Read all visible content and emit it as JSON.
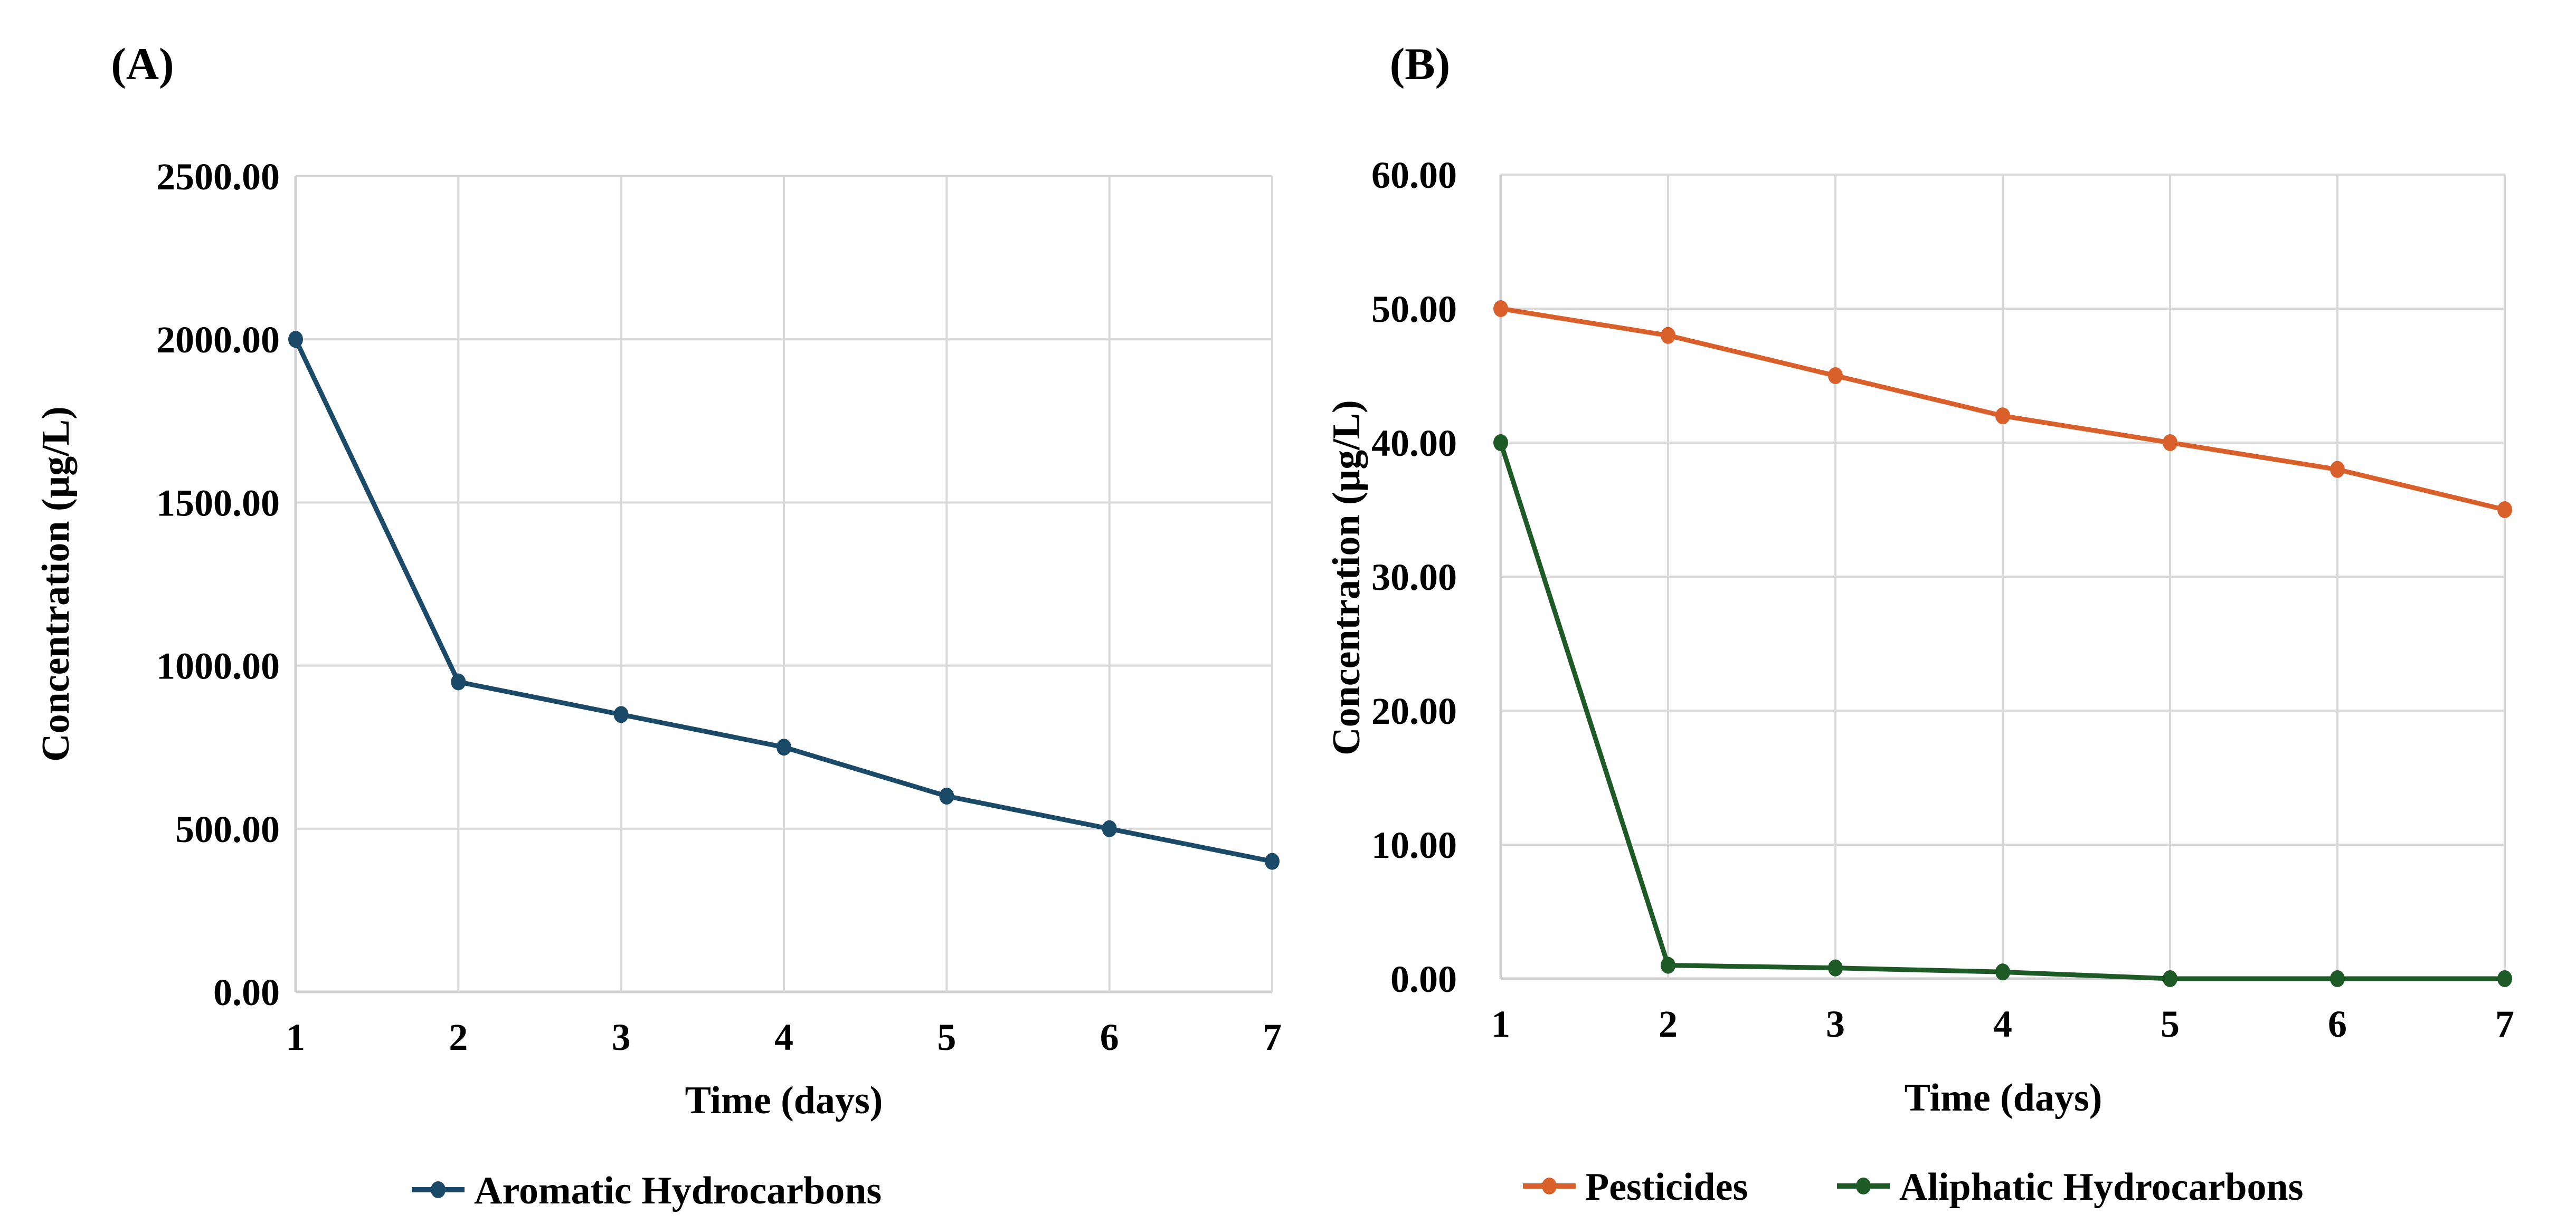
{
  "chart_data": [
    {
      "panel_label": "(A)",
      "type": "line",
      "title": "",
      "xlabel": "Time (days)",
      "ylabel": "Concentration (µg/L)",
      "x": [
        1,
        2,
        3,
        4,
        5,
        6,
        7
      ],
      "xticks": [
        "1",
        "2",
        "3",
        "4",
        "5",
        "6",
        "7"
      ],
      "ylim": [
        0,
        2500
      ],
      "yticks": [
        "0.00",
        "500.00",
        "1000.00",
        "1500.00",
        "2000.00",
        "2500.00"
      ],
      "ytick_values": [
        0,
        500,
        1000,
        1500,
        2000,
        2500
      ],
      "grid": true,
      "legend_position": "bottom-center",
      "series": [
        {
          "name": "Aromatic Hydrocarbons",
          "color": "#1b4a68",
          "values": [
            2000,
            950,
            850,
            750,
            600,
            500,
            400
          ]
        }
      ]
    },
    {
      "panel_label": "(B)",
      "type": "line",
      "title": "",
      "xlabel": "Time (days)",
      "ylabel": "Concentration (µg/L)",
      "x": [
        1,
        2,
        3,
        4,
        5,
        6,
        7
      ],
      "xticks": [
        "1",
        "2",
        "3",
        "4",
        "5",
        "6",
        "7"
      ],
      "ylim": [
        0,
        60
      ],
      "yticks": [
        "0.00",
        "10.00",
        "20.00",
        "30.00",
        "40.00",
        "50.00",
        "60.00"
      ],
      "ytick_values": [
        0,
        10,
        20,
        30,
        40,
        50,
        60
      ],
      "grid": true,
      "legend_position": "bottom-center",
      "series": [
        {
          "name": "Pesticides",
          "color": "#d9602a",
          "values": [
            50,
            48,
            45,
            42,
            40,
            38,
            35
          ]
        },
        {
          "name": "Aliphatic Hydrocarbons",
          "color": "#1e5a26",
          "values": [
            40,
            1.0,
            0.8,
            0.5,
            0,
            0,
            0
          ]
        }
      ]
    }
  ]
}
